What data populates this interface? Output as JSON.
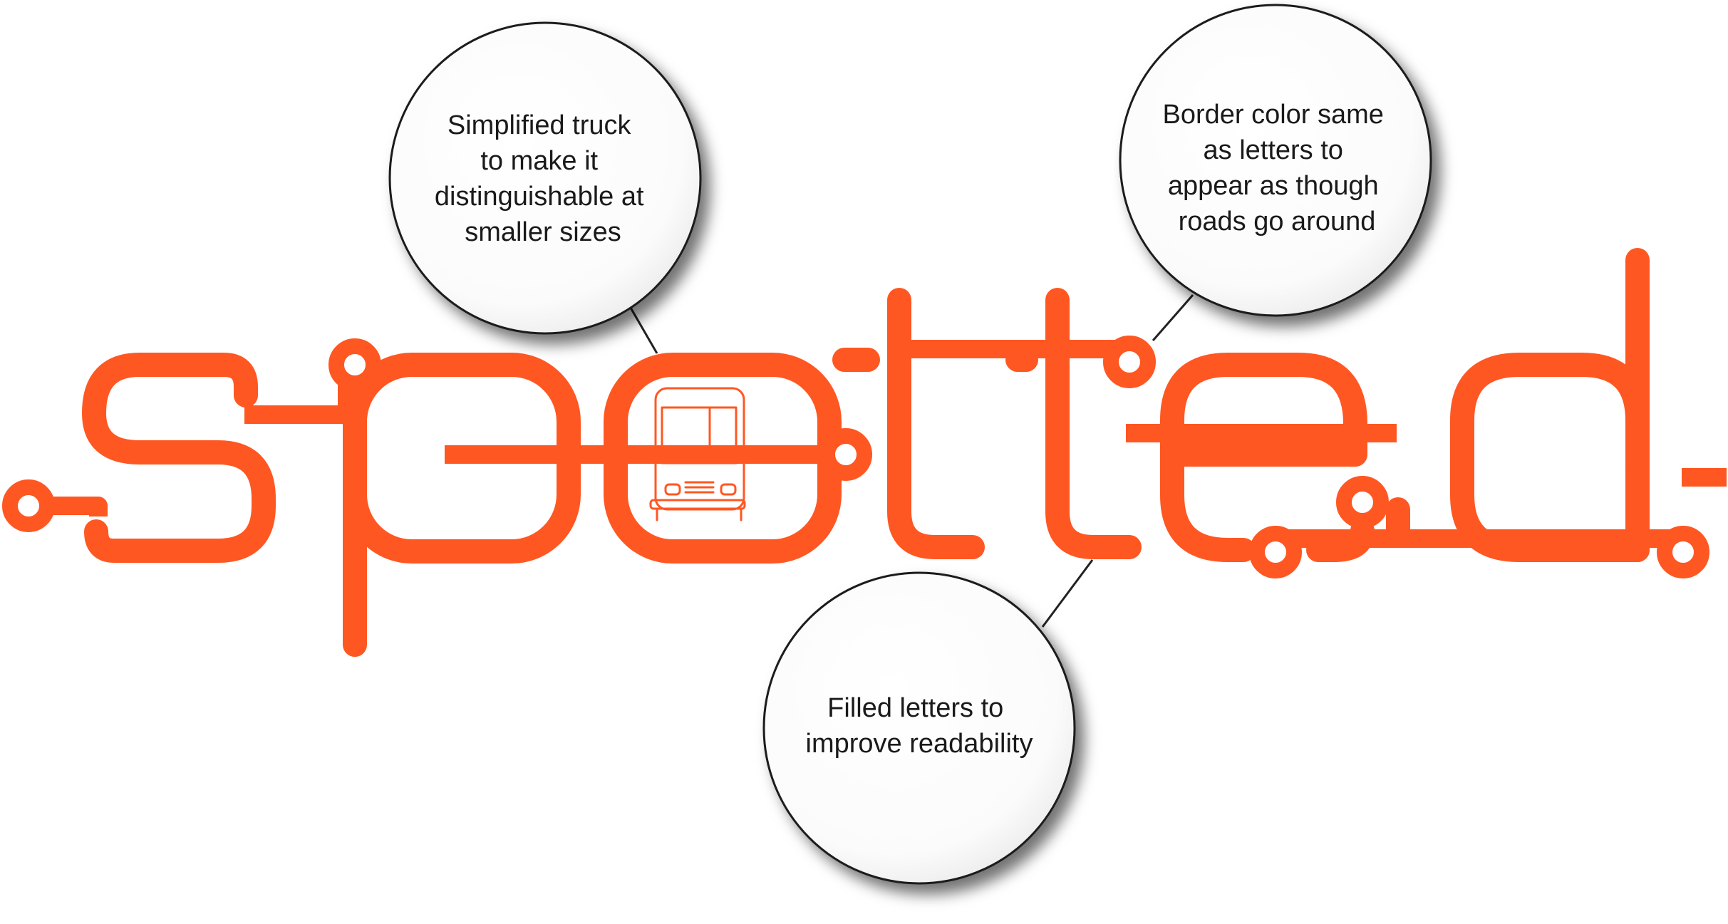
{
  "logo": {
    "accent_color": "#ff5722",
    "icon": "food-truck-icon"
  },
  "callouts": [
    {
      "id": "truck",
      "lines": [
        "Simplified truck",
        "to make it",
        "distinguishable at",
        "smaller sizes"
      ]
    },
    {
      "id": "border",
      "lines": [
        "Border color same",
        "as letters to",
        "appear as though",
        "roads go around"
      ]
    },
    {
      "id": "filled",
      "lines": [
        "Filled letters to",
        "improve readability"
      ]
    }
  ]
}
